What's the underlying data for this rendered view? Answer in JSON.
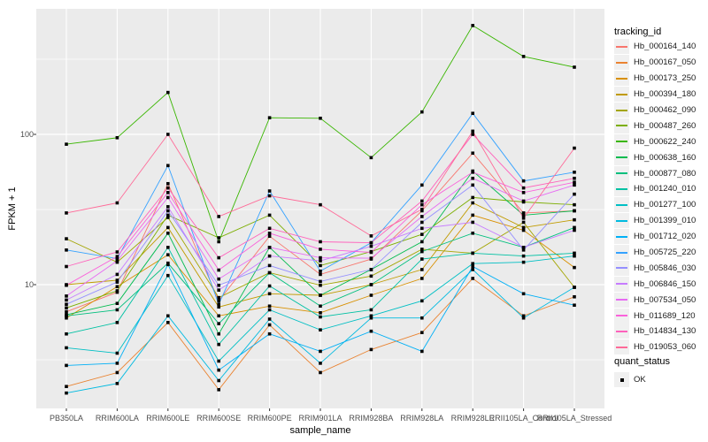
{
  "chart_data": {
    "type": "line",
    "title": "",
    "xlabel": "sample_name",
    "ylabel": "FPKM + 1",
    "y_scale": "log10",
    "ylim": [
      1.5,
      680
    ],
    "y_ticks": [
      100,
      10
    ],
    "y_minor": [
      3.162,
      31.62,
      316.2
    ],
    "grid": "on",
    "legend_position": "right",
    "point_shape": "filled-square",
    "point_color": "#000000",
    "panel_bg": "#ebebeb",
    "grid_color": "#ffffff",
    "categories": [
      "PB350LA",
      "RRIM600LA",
      "RRIM600LE",
      "RRIM600SE",
      "RRIM600PE",
      "RRIM901LA",
      "RRIM928BA",
      "RRIM928LA",
      "RRIM928LE",
      "RRII105LA_Control",
      "RRII105LA_Stressed"
    ],
    "series": [
      {
        "name": "Hb_000164_140",
        "color": "#F8766D",
        "values": [
          6.6,
          8.9,
          47,
          7.8,
          21,
          11.7,
          14.8,
          31,
          75,
          30,
          31
        ]
      },
      {
        "name": "Hb_000167_050",
        "color": "#EA8331",
        "values": [
          2.1,
          2.6,
          5.6,
          2.0,
          5.4,
          2.6,
          3.7,
          4.8,
          11.0,
          6.2,
          8.3
        ]
      },
      {
        "name": "Hb_000173_250",
        "color": "#D89000",
        "values": [
          6.0,
          9.7,
          15.8,
          6.2,
          7.2,
          6.5,
          8.5,
          11.0,
          29,
          23,
          13.0
        ]
      },
      {
        "name": "Hb_000394_180",
        "color": "#C09B00",
        "values": [
          10.0,
          10.7,
          24,
          7.1,
          8.7,
          8.5,
          10.0,
          12.6,
          35,
          24,
          27
        ]
      },
      {
        "name": "Hb_000462_090",
        "color": "#A3A500",
        "values": [
          20.2,
          14.1,
          28,
          8.2,
          12.0,
          9.9,
          11.4,
          17.2,
          16.2,
          26,
          9.6
        ]
      },
      {
        "name": "Hb_000487_260",
        "color": "#7CAE00",
        "values": [
          7.0,
          9.1,
          29,
          20.5,
          29,
          13.4,
          16.6,
          21.6,
          38,
          35.5,
          34
        ]
      },
      {
        "name": "Hb_000622_240",
        "color": "#39B600",
        "values": [
          86,
          95,
          190,
          19.3,
          129,
          128,
          70,
          141,
          530,
          330,
          280
        ]
      },
      {
        "name": "Hb_000638_160",
        "color": "#00BB4E",
        "values": [
          6.3,
          7.5,
          22,
          4.7,
          17.7,
          8.5,
          12.6,
          19.3,
          57,
          29,
          31
        ]
      },
      {
        "name": "Hb_000877_080",
        "color": "#00BF7D",
        "values": [
          6.2,
          6.8,
          13.9,
          5.5,
          12.0,
          7.2,
          10.0,
          16.6,
          22,
          17.7,
          24
        ]
      },
      {
        "name": "Hb_001240_010",
        "color": "#00C1A3",
        "values": [
          4.7,
          5.6,
          17.7,
          4.0,
          9.8,
          6.1,
          6.8,
          14.8,
          16.2,
          15.5,
          16.2
        ]
      },
      {
        "name": "Hb_001277_100",
        "color": "#00BFC4",
        "values": [
          3.8,
          3.5,
          11.5,
          3.1,
          6.8,
          5.0,
          6.2,
          7.8,
          13.8,
          14.1,
          15.5
        ]
      },
      {
        "name": "Hb_001399_010",
        "color": "#00BAE0",
        "values": [
          1.9,
          2.2,
          6.2,
          2.3,
          5.9,
          3.0,
          6.0,
          6.0,
          12.6,
          6.0,
          9.6
        ]
      },
      {
        "name": "Hb_001712_020",
        "color": "#00B0F6",
        "values": [
          2.9,
          3.0,
          13.6,
          2.7,
          4.7,
          3.6,
          4.9,
          3.6,
          13.2,
          8.7,
          7.3
        ]
      },
      {
        "name": "Hb_005725_220",
        "color": "#35A2FF",
        "values": [
          17.0,
          14.9,
          62,
          7.4,
          42,
          12.3,
          19.0,
          46,
          138,
          49,
          56
        ]
      },
      {
        "name": "Hb_005846_030",
        "color": "#9590FF",
        "values": [
          7.4,
          10.4,
          31,
          9.9,
          13.4,
          10.5,
          12.6,
          26,
          46,
          17.0,
          40
        ]
      },
      {
        "name": "Hb_006846_150",
        "color": "#C77CFF",
        "values": [
          7.9,
          11.7,
          33,
          9.2,
          15.5,
          14.4,
          18.0,
          23.7,
          26,
          17.7,
          23
        ]
      },
      {
        "name": "Hb_007534_050",
        "color": "#E76BF3",
        "values": [
          8.4,
          14.4,
          38,
          10.9,
          17.7,
          15.1,
          15.0,
          28.4,
          51,
          36,
          46
        ]
      },
      {
        "name": "Hb_011689_120",
        "color": "#FA62DB",
        "values": [
          9.9,
          15.4,
          41,
          12.5,
          22,
          17.2,
          16.4,
          34,
          56,
          41,
          48
        ]
      },
      {
        "name": "Hb_014834_130",
        "color": "#FF62BC",
        "values": [
          13.2,
          16.5,
          44,
          15.1,
          23.7,
          19.3,
          19.0,
          36,
          100,
          44,
          51
        ]
      },
      {
        "name": "Hb_019053_060",
        "color": "#FF6A98",
        "values": [
          30,
          35,
          100,
          28.4,
          39,
          34,
          21.1,
          31.7,
          105,
          27.7,
          81
        ]
      }
    ],
    "legend_title": "tracking_id",
    "quant_legend": {
      "title": "quant_status",
      "items": [
        "OK"
      ]
    }
  }
}
